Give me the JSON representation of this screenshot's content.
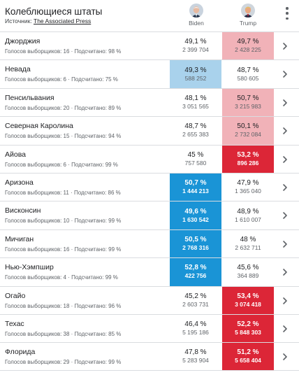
{
  "header": {
    "title": "Колеблющиеся штаты",
    "source_prefix": "Источник: ",
    "source_link": "The Associated Press"
  },
  "candidates": [
    {
      "name": "Biden",
      "color": "#a9d2ec"
    },
    {
      "name": "Trump",
      "color": "#f1b2b8"
    }
  ],
  "colors": {
    "biden_light": "#a9d2ec",
    "biden_win": "#1a94d6",
    "trump_light": "#f1b2b8",
    "trump_win": "#dc2637"
  },
  "states": [
    {
      "name": "Джорджия",
      "meta": "Голосов выборщиков: 16 · Подсчитано: 98 %",
      "a_pct": "49,1 %",
      "a_votes": "2 399 704",
      "b_pct": "49,7 %",
      "b_votes": "2 428 225",
      "a_fill": "",
      "b_fill": "light"
    },
    {
      "name": "Невада",
      "meta": "Голосов выборщиков: 6 · Подсчитано: 75 %",
      "a_pct": "49,3 %",
      "a_votes": "588 252",
      "b_pct": "48,7 %",
      "b_votes": "580 605",
      "a_fill": "light",
      "b_fill": ""
    },
    {
      "name": "Пенсильвания",
      "meta": "Голосов выборщиков: 20 · Подсчитано: 89 %",
      "a_pct": "48,1 %",
      "a_votes": "3 051 565",
      "b_pct": "50,7 %",
      "b_votes": "3 215 983",
      "a_fill": "",
      "b_fill": "light"
    },
    {
      "name": "Северная Каролина",
      "meta": "Голосов выборщиков: 15 · Подсчитано: 94 %",
      "a_pct": "48,7 %",
      "a_votes": "2 655 383",
      "b_pct": "50,1 %",
      "b_votes": "2 732 084",
      "a_fill": "",
      "b_fill": "light"
    },
    {
      "name": "Айова",
      "meta": "Голосов выборщиков: 6 · Подсчитано: 99 %",
      "a_pct": "45 %",
      "a_votes": "757 580",
      "b_pct": "53,2 %",
      "b_votes": "896 286",
      "a_fill": "",
      "b_fill": "win"
    },
    {
      "name": "Аризона",
      "meta": "Голосов выборщиков: 11 · Подсчитано: 86 %",
      "a_pct": "50,7 %",
      "a_votes": "1 444 213",
      "b_pct": "47,9 %",
      "b_votes": "1 365 040",
      "a_fill": "win",
      "b_fill": ""
    },
    {
      "name": "Висконсин",
      "meta": "Голосов выборщиков: 10 · Подсчитано: 99 %",
      "a_pct": "49,6 %",
      "a_votes": "1 630 542",
      "b_pct": "48,9 %",
      "b_votes": "1 610 007",
      "a_fill": "win",
      "b_fill": ""
    },
    {
      "name": "Мичиган",
      "meta": "Голосов выборщиков: 16 · Подсчитано: 99 %",
      "a_pct": "50,5 %",
      "a_votes": "2 768 316",
      "b_pct": "48 %",
      "b_votes": "2 632 711",
      "a_fill": "win",
      "b_fill": ""
    },
    {
      "name": "Нью-Хэмпшир",
      "meta": "Голосов выборщиков: 4 · Подсчитано: 99 %",
      "a_pct": "52,8 %",
      "a_votes": "422 756",
      "b_pct": "45,6 %",
      "b_votes": "364 889",
      "a_fill": "win",
      "b_fill": ""
    },
    {
      "name": "Огайо",
      "meta": "Голосов выборщиков: 18 · Подсчитано: 96 %",
      "a_pct": "45,2 %",
      "a_votes": "2 603 731",
      "b_pct": "53,4 %",
      "b_votes": "3 074 418",
      "a_fill": "",
      "b_fill": "win"
    },
    {
      "name": "Техас",
      "meta": "Голосов выборщиков: 38 · Подсчитано: 85 %",
      "a_pct": "46,4 %",
      "a_votes": "5 195 186",
      "b_pct": "52,2 %",
      "b_votes": "5 848 303",
      "a_fill": "",
      "b_fill": "win"
    },
    {
      "name": "Флорида",
      "meta": "Голосов выборщиков: 29 · Подсчитано: 99 %",
      "a_pct": "47,8 %",
      "a_votes": "5 283 904",
      "b_pct": "51,2 %",
      "b_votes": "5 658 404",
      "a_fill": "",
      "b_fill": "win"
    }
  ]
}
